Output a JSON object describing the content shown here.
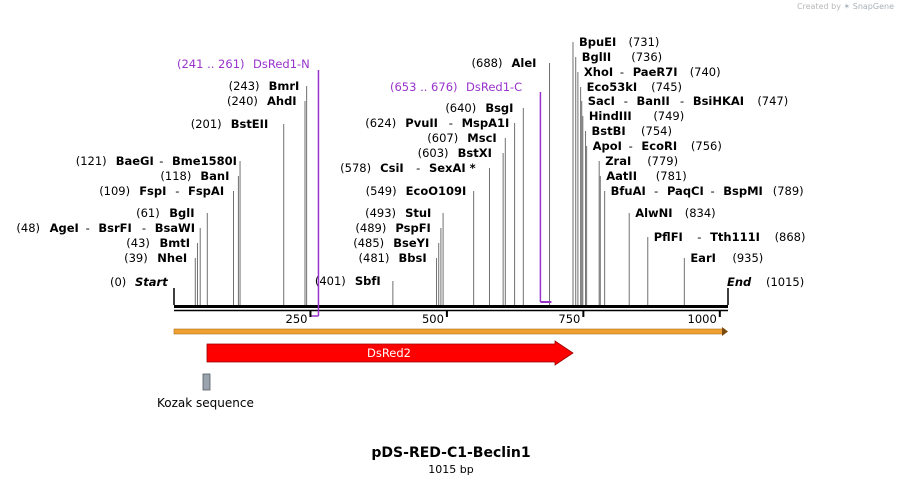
{
  "credit": {
    "prefix": "Created by",
    "brand": "SnapGene"
  },
  "plasmid": {
    "name": "pDS-RED-C1-Beclin1",
    "length_label": "1015 bp",
    "length": 1015
  },
  "scale": {
    "ticks": [
      {
        "pos": 250,
        "label": "250"
      },
      {
        "pos": 500,
        "label": "500"
      },
      {
        "pos": 750,
        "label": "750"
      },
      {
        "pos": 1000,
        "label": "1000"
      }
    ]
  },
  "ends": [
    {
      "name": "Start",
      "pos_label": "(0)",
      "pos": 0
    },
    {
      "name": "End",
      "pos_label": "(1015)",
      "pos": 1015
    }
  ],
  "sites": [
    {
      "names": [
        "NheI"
      ],
      "pos_label": "(39)",
      "pos": 39
    },
    {
      "names": [
        "BmtI"
      ],
      "pos_label": "(43)",
      "pos": 43
    },
    {
      "names": [
        "AgeI",
        "BsrFI",
        "BsaWI"
      ],
      "pos_label": "(48)",
      "pos": 48
    },
    {
      "names": [
        "BglI"
      ],
      "pos_label": "(61)",
      "pos": 61
    },
    {
      "names": [
        "FspI",
        "FspAI"
      ],
      "pos_label": "(109)",
      "pos": 109
    },
    {
      "names": [
        "BanI"
      ],
      "pos_label": "(118)",
      "pos": 118
    },
    {
      "names": [
        "BaeGI",
        "Bme1580I"
      ],
      "pos_label": "(121)",
      "pos": 121
    },
    {
      "names": [
        "BstEII"
      ],
      "pos_label": "(201)",
      "pos": 201
    },
    {
      "names": [
        "AhdI"
      ],
      "pos_label": "(240)",
      "pos": 240
    },
    {
      "names": [
        "BmrI"
      ],
      "pos_label": "(243)",
      "pos": 243
    },
    {
      "names": [
        "SbfI"
      ],
      "pos_label": "(401)",
      "pos": 401
    },
    {
      "names": [
        "BbsI"
      ],
      "pos_label": "(481)",
      "pos": 481
    },
    {
      "names": [
        "BseYI"
      ],
      "pos_label": "(485)",
      "pos": 485
    },
    {
      "names": [
        "PspFI"
      ],
      "pos_label": "(489)",
      "pos": 489
    },
    {
      "names": [
        "StuI"
      ],
      "pos_label": "(493)",
      "pos": 493
    },
    {
      "names": [
        "EcoO109I"
      ],
      "pos_label": "(549)",
      "pos": 549
    },
    {
      "names": [
        "CsiI",
        "SexAI *"
      ],
      "pos_label": "(578)",
      "pos": 578
    },
    {
      "names": [
        "BstXI"
      ],
      "pos_label": "(603)",
      "pos": 603
    },
    {
      "names": [
        "MscI"
      ],
      "pos_label": "(607)",
      "pos": 607
    },
    {
      "names": [
        "PvuII",
        "MspA1I"
      ],
      "pos_label": "(624)",
      "pos": 624
    },
    {
      "names": [
        "BsgI"
      ],
      "pos_label": "(640)",
      "pos": 640
    },
    {
      "names": [
        "AleI"
      ],
      "pos_label": "(688)",
      "pos": 688
    },
    {
      "names": [
        "BpuEI"
      ],
      "pos_label": "(731)",
      "pos": 731
    },
    {
      "names": [
        "BglII"
      ],
      "pos_label": "(736)",
      "pos": 736
    },
    {
      "names": [
        "XhoI",
        "PaeR7I"
      ],
      "pos_label": "(740)",
      "pos": 740
    },
    {
      "names": [
        "Eco53kI"
      ],
      "pos_label": "(745)",
      "pos": 745
    },
    {
      "names": [
        "SacI",
        "BanII",
        "BsiHKAI"
      ],
      "pos_label": "(747)",
      "pos": 747
    },
    {
      "names": [
        "HindIII"
      ],
      "pos_label": "(749)",
      "pos": 749
    },
    {
      "names": [
        "BstBI"
      ],
      "pos_label": "(754)",
      "pos": 754
    },
    {
      "names": [
        "ApoI",
        "EcoRI"
      ],
      "pos_label": "(756)",
      "pos": 756
    },
    {
      "names": [
        "ZraI"
      ],
      "pos_label": "(779)",
      "pos": 779
    },
    {
      "names": [
        "AatII"
      ],
      "pos_label": "(781)",
      "pos": 781
    },
    {
      "names": [
        "BfuAI",
        "PaqCI",
        "BspMI"
      ],
      "pos_label": "(789)",
      "pos": 789
    },
    {
      "names": [
        "AlwNI"
      ],
      "pos_label": "(834)",
      "pos": 834
    },
    {
      "names": [
        "PflFI",
        "Tth111I"
      ],
      "pos_label": "(868)",
      "pos": 868
    },
    {
      "names": [
        "EarI"
      ],
      "pos_label": "(935)",
      "pos": 935
    }
  ],
  "primers": [
    {
      "name": "DsRed1-N",
      "range_label": "(241 .. 261)",
      "start": 241,
      "end": 261,
      "color": "#9933cc"
    },
    {
      "name": "DsRed1-C",
      "range_label": "(653 .. 676)",
      "start": 653,
      "end": 676,
      "color": "#9933cc"
    }
  ],
  "features": [
    {
      "name": "DsRed2",
      "start": 61,
      "end": 736,
      "type": "cds",
      "color": "#ff0000"
    },
    {
      "name": "Kozak sequence",
      "start": 52,
      "end": 61,
      "type": "misc",
      "color": "#9aa3ae"
    }
  ],
  "colors": {
    "backbone": "#000000",
    "orf_bar": "#f0a030",
    "site_line": "#707070"
  }
}
